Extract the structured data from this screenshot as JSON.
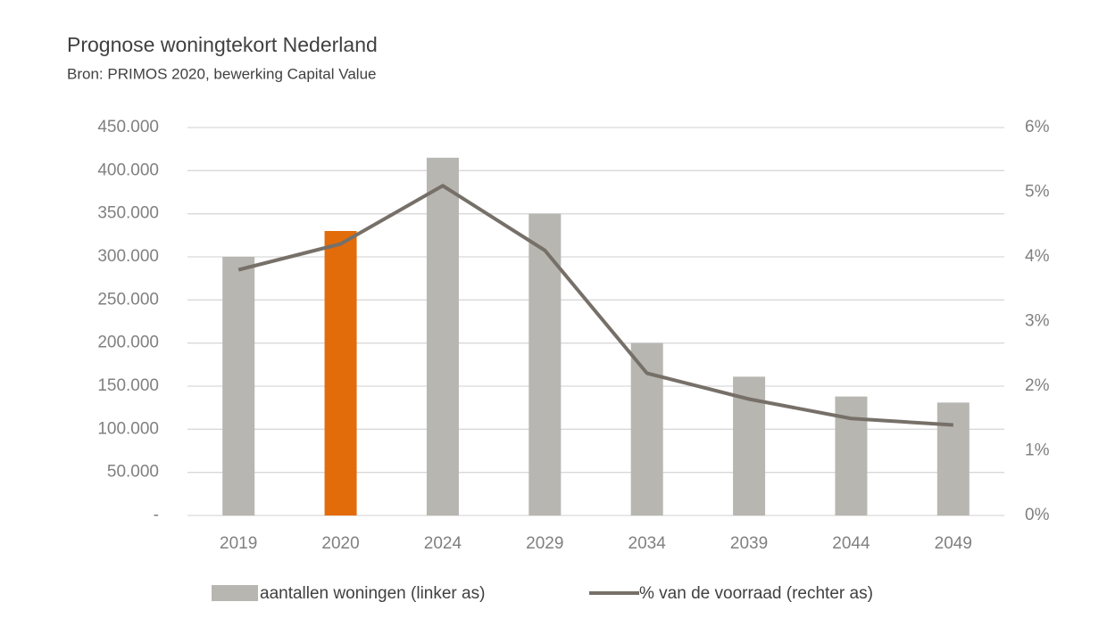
{
  "chart_data": {
    "type": "bar",
    "title": "Prognose woningtekort  Nederland",
    "subtitle": "Bron: PRIMOS 2020, bewerking Capital Value",
    "categories": [
      "2019",
      "2020",
      "2024",
      "2029",
      "2034",
      "2039",
      "2044",
      "2049"
    ],
    "series": [
      {
        "name": "aantallen woningen (linker as)",
        "type": "bar",
        "color": "#b8b6b1",
        "bar_colors": [
          "#b8b6b1",
          "#e36c0a",
          "#b8b6b1",
          "#b8b6b1",
          "#b8b6b1",
          "#b8b6b1",
          "#b8b6b1",
          "#b8b6b1"
        ],
        "values": [
          300000,
          330000,
          415000,
          350000,
          200000,
          161000,
          138000,
          131000
        ]
      },
      {
        "name": "% van de voorraad (rechter as)",
        "type": "line",
        "axis": "y2",
        "color": "#767069",
        "values": [
          3.8,
          4.2,
          5.1,
          4.1,
          2.2,
          1.8,
          1.5,
          1.4
        ]
      }
    ],
    "ylim": [
      0,
      450000
    ],
    "yticks": [
      {
        "value": 0,
        "label": "-"
      },
      {
        "value": 50000,
        "label": "50.000"
      },
      {
        "value": 100000,
        "label": "100.000"
      },
      {
        "value": 150000,
        "label": "150.000"
      },
      {
        "value": 200000,
        "label": "200.000"
      },
      {
        "value": 250000,
        "label": "250.000"
      },
      {
        "value": 300000,
        "label": "300.000"
      },
      {
        "value": 350000,
        "label": "350.000"
      },
      {
        "value": 400000,
        "label": "400.000"
      },
      {
        "value": 450000,
        "label": "450.000"
      }
    ],
    "y2lim": [
      0,
      6
    ],
    "y2ticks": [
      {
        "value": 0,
        "label": "0%"
      },
      {
        "value": 1,
        "label": "1%"
      },
      {
        "value": 2,
        "label": "2%"
      },
      {
        "value": 3,
        "label": "3%"
      },
      {
        "value": 4,
        "label": "4%"
      },
      {
        "value": 5,
        "label": "5%"
      },
      {
        "value": 6,
        "label": "6%"
      }
    ],
    "grid": true,
    "legend": "bottom"
  }
}
